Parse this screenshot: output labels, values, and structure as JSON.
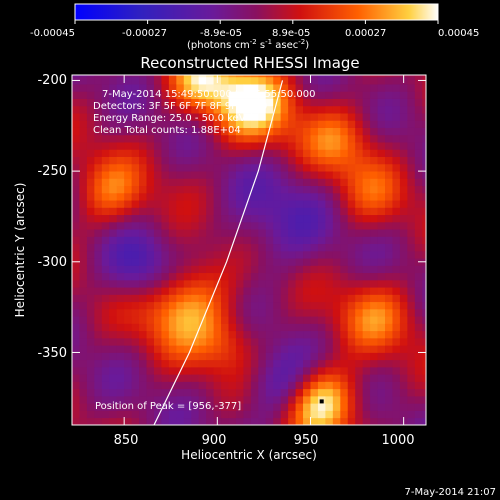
{
  "colorbar": {
    "ticks": [
      "-0.00045",
      "-0.00027",
      "-8.9e-05",
      "8.9e-05",
      "0.00027",
      "0.00045"
    ],
    "units_text": "(photons cm",
    "units_exp1": "-2",
    "units_mid": " s",
    "units_exp2": "-1",
    "units_mid2": " asec",
    "units_exp3": "-2",
    "units_close": ")",
    "colors": [
      "#0000ff",
      "#4020b0",
      "#7a1a9a",
      "#c01020",
      "#ff5000",
      "#ffd040",
      "#ffffff"
    ]
  },
  "chart_data": {
    "type": "heatmap",
    "title": "Reconstructed RHESSI Image",
    "xlabel": "Heliocentric X (arcsec)",
    "ylabel": "Heliocentric Y (arcsec)",
    "xlim": [
      822,
      1012
    ],
    "ylim": [
      -390,
      -197
    ],
    "xticks": [
      "850",
      "900",
      "950",
      "1000"
    ],
    "yticks": [
      "-200",
      "-250",
      "-300",
      "-350"
    ],
    "xtick_values": [
      850,
      900,
      950,
      1000
    ],
    "ytick_values": [
      -200,
      -250,
      -300,
      -350
    ],
    "vmin": -0.00045,
    "vmax": 0.00045,
    "annotations": [
      "7-May-2014 15:49:50.000 to 15:55:50.000",
      "Detectors: 3F 5F 6F 7F 8F 9F, Att 0",
      "Energy Range: 25.0 - 50.0 keV",
      "Clean     Total counts: 1.88E+04"
    ],
    "peak_label": "Position of Peak = [956,-377]",
    "peak": [
      956,
      -377
    ],
    "limb_curve": [
      [
        866,
        -390
      ],
      [
        885,
        -350
      ],
      [
        905,
        -300
      ],
      [
        922,
        -250
      ],
      [
        935,
        -200
      ]
    ]
  },
  "footer_timestamp": "7-May-2014 21:07"
}
